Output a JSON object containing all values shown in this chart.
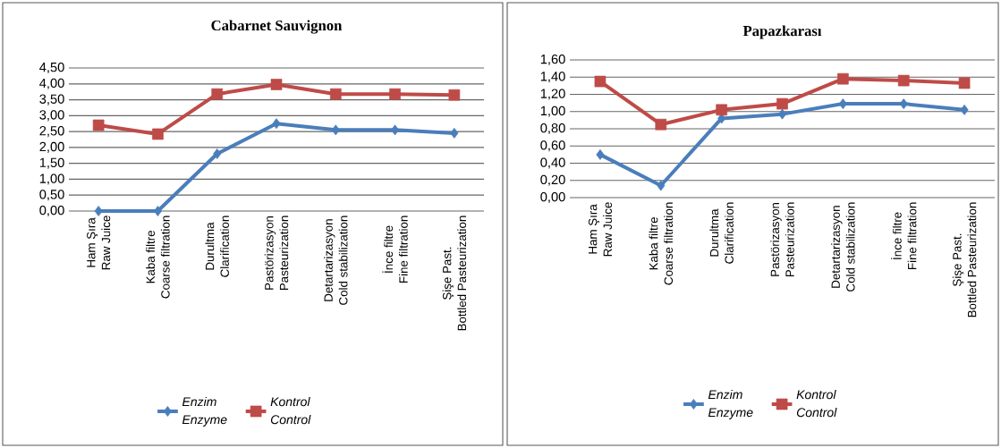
{
  "chart_data": [
    {
      "type": "line",
      "title": "Cabarnet Sauvignon",
      "categories": [
        "Ham Şıra\nRaw Juice",
        "Kaba filtre\nCoarse filtration",
        "Durultma\nClarification",
        "Pastörizasyon\nPasteurization",
        "Detartarizasyon\nCold stabilization",
        "İnce filtre\nFine filtration",
        "Şişe Past.\nBottled Pasteurization"
      ],
      "series": [
        {
          "name": "Enzim\nEnzyme",
          "color": "#4a7ebb",
          "marker": "diamond",
          "values": [
            0.0,
            0.0,
            1.8,
            2.75,
            2.55,
            2.55,
            2.45
          ]
        },
        {
          "name": "Kontrol\nControl",
          "color": "#be4b48",
          "marker": "square",
          "values": [
            2.7,
            2.42,
            3.68,
            3.98,
            3.68,
            3.68,
            3.65
          ]
        }
      ],
      "ylim": [
        0,
        4.5
      ],
      "yticks": [
        {
          "value": 0,
          "label": "0,00"
        },
        {
          "value": 0.5,
          "label": "0,50"
        },
        {
          "value": 1,
          "label": "1,00"
        },
        {
          "value": 1.5,
          "label": "1,50"
        },
        {
          "value": 2,
          "label": "2,00"
        },
        {
          "value": 2.5,
          "label": "2,50"
        },
        {
          "value": 3,
          "label": "3,00"
        },
        {
          "value": 3.5,
          "label": "3,50"
        },
        {
          "value": 4,
          "label": "4,00"
        },
        {
          "value": 4.5,
          "label": "4,50"
        }
      ],
      "grid": "y",
      "legend": "bottom"
    },
    {
      "type": "line",
      "title": "Papazkarası",
      "categories": [
        "Ham Şıra\nRaw Juice",
        "Kaba filtre\nCoarse filtration",
        "Durultma\nClarification",
        "Pastörizasyon\nPasteurization",
        "Detartarizasyon\nCold stabilization",
        "İnce filtre\nFine filtration",
        "Şişe Past.\nBottled Pasteurization"
      ],
      "series": [
        {
          "name": "Enzim\nEnzyme",
          "color": "#4a7ebb",
          "marker": "diamond",
          "values": [
            0.5,
            0.14,
            0.92,
            0.97,
            1.09,
            1.09,
            1.02
          ]
        },
        {
          "name": "Kontrol\nControl",
          "color": "#be4b48",
          "marker": "square",
          "values": [
            1.35,
            0.85,
            1.02,
            1.09,
            1.38,
            1.36,
            1.33
          ]
        }
      ],
      "ylim": [
        0,
        1.6
      ],
      "yticks": [
        {
          "value": 0,
          "label": "0,00"
        },
        {
          "value": 0.2,
          "label": "0,20"
        },
        {
          "value": 0.4,
          "label": "0,40"
        },
        {
          "value": 0.6,
          "label": "0,60"
        },
        {
          "value": 0.8,
          "label": "0,80"
        },
        {
          "value": 1,
          "label": "1,00"
        },
        {
          "value": 1.2,
          "label": "1,20"
        },
        {
          "value": 1.4,
          "label": "1,40"
        },
        {
          "value": 1.6,
          "label": "1,60"
        }
      ],
      "grid": "y",
      "legend": "bottom"
    }
  ]
}
